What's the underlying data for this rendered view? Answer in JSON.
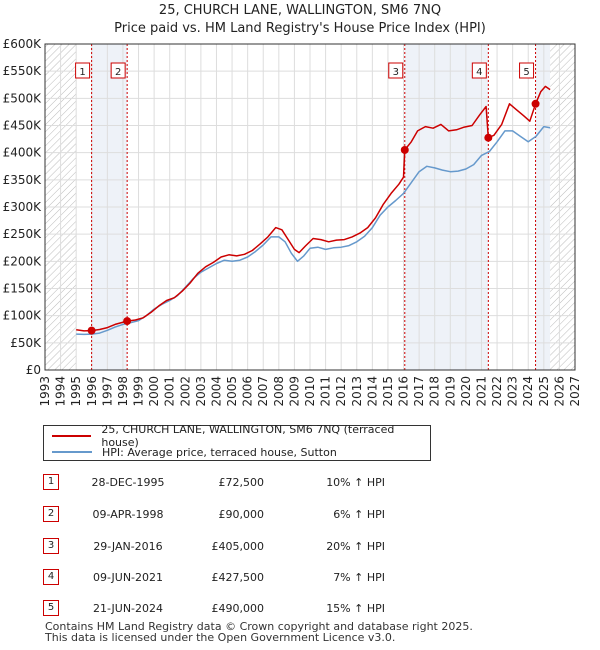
{
  "title_line1": "25, CHURCH LANE, WALLINGTON, SM6 7NQ",
  "title_line2": "Price paid vs. HM Land Registry's House Price Index (HPI)",
  "colors": {
    "price": "#cc0000",
    "hpi": "#6699cc",
    "grid": "#dddddd",
    "hatch": "#bbbbbb",
    "shade": "#eef2f8"
  },
  "chart_data": {
    "type": "line",
    "title": "25, CHURCH LANE, WALLINGTON, SM6 7NQ — Price paid vs. HM Land Registry's House Price Index (HPI)",
    "xlim": [
      1993,
      2027
    ],
    "ylim": [
      0,
      600000
    ],
    "x_ticks": [
      1993,
      1994,
      1995,
      1996,
      1997,
      1998,
      1999,
      2000,
      2001,
      2002,
      2003,
      2004,
      2005,
      2006,
      2007,
      2008,
      2009,
      2010,
      2011,
      2012,
      2013,
      2014,
      2015,
      2016,
      2017,
      2018,
      2019,
      2020,
      2021,
      2022,
      2023,
      2024,
      2025,
      2026,
      2027
    ],
    "y_ticks": [
      {
        "value": 0,
        "label": "£0"
      },
      {
        "value": 50000,
        "label": "£50K"
      },
      {
        "value": 100000,
        "label": "£100K"
      },
      {
        "value": 150000,
        "label": "£150K"
      },
      {
        "value": 200000,
        "label": "£200K"
      },
      {
        "value": 250000,
        "label": "£250K"
      },
      {
        "value": 300000,
        "label": "£300K"
      },
      {
        "value": 350000,
        "label": "£350K"
      },
      {
        "value": 400000,
        "label": "£400K"
      },
      {
        "value": 450000,
        "label": "£450K"
      },
      {
        "value": 500000,
        "label": "£500K"
      },
      {
        "value": 550000,
        "label": "£550K"
      },
      {
        "value": 600000,
        "label": "£600K"
      }
    ],
    "data_start": 1995.0,
    "data_end": 2025.4,
    "series": [
      {
        "name": "25, CHURCH LANE, WALLINGTON, SM6 7NQ (terraced house)",
        "color": "#cc0000",
        "points": [
          [
            1995.0,
            74000
          ],
          [
            1995.5,
            72000
          ],
          [
            1995.99,
            72500
          ],
          [
            1996.5,
            74500
          ],
          [
            1997.0,
            78000
          ],
          [
            1997.5,
            84000
          ],
          [
            1998.27,
            90000
          ],
          [
            1998.8,
            92000
          ],
          [
            1999.3,
            96000
          ],
          [
            1999.8,
            106000
          ],
          [
            2000.3,
            118000
          ],
          [
            2000.8,
            128000
          ],
          [
            2001.3,
            133000
          ],
          [
            2001.8,
            145000
          ],
          [
            2002.3,
            160000
          ],
          [
            2002.8,
            178000
          ],
          [
            2003.3,
            190000
          ],
          [
            2003.8,
            198000
          ],
          [
            2004.3,
            208000
          ],
          [
            2004.8,
            212000
          ],
          [
            2005.3,
            210000
          ],
          [
            2005.8,
            213000
          ],
          [
            2006.3,
            220000
          ],
          [
            2006.8,
            232000
          ],
          [
            2007.3,
            245000
          ],
          [
            2007.8,
            262000
          ],
          [
            2008.2,
            258000
          ],
          [
            2008.6,
            240000
          ],
          [
            2009.0,
            222000
          ],
          [
            2009.3,
            216000
          ],
          [
            2009.7,
            228000
          ],
          [
            2010.2,
            242000
          ],
          [
            2010.7,
            240000
          ],
          [
            2011.2,
            236000
          ],
          [
            2011.7,
            239000
          ],
          [
            2012.2,
            240000
          ],
          [
            2012.7,
            245000
          ],
          [
            2013.2,
            252000
          ],
          [
            2013.7,
            262000
          ],
          [
            2014.2,
            280000
          ],
          [
            2014.7,
            305000
          ],
          [
            2015.2,
            325000
          ],
          [
            2015.7,
            342000
          ],
          [
            2016.0,
            355000
          ],
          [
            2016.08,
            405000
          ],
          [
            2016.5,
            420000
          ],
          [
            2016.9,
            440000
          ],
          [
            2017.4,
            448000
          ],
          [
            2017.9,
            445000
          ],
          [
            2018.4,
            452000
          ],
          [
            2018.9,
            440000
          ],
          [
            2019.4,
            442000
          ],
          [
            2019.9,
            447000
          ],
          [
            2020.4,
            450000
          ],
          [
            2020.9,
            470000
          ],
          [
            2021.3,
            485000
          ],
          [
            2021.44,
            427500
          ],
          [
            2021.8,
            432000
          ],
          [
            2022.3,
            452000
          ],
          [
            2022.8,
            490000
          ],
          [
            2023.2,
            480000
          ],
          [
            2023.7,
            468000
          ],
          [
            2024.1,
            458000
          ],
          [
            2024.47,
            490000
          ],
          [
            2024.8,
            512000
          ],
          [
            2025.1,
            522000
          ],
          [
            2025.4,
            516000
          ]
        ]
      },
      {
        "name": "HPI: Average price, terraced house, Sutton",
        "color": "#6699cc",
        "points": [
          [
            1995.0,
            66000
          ],
          [
            1995.5,
            65500
          ],
          [
            1996.0,
            66000
          ],
          [
            1996.5,
            68000
          ],
          [
            1997.0,
            73000
          ],
          [
            1997.5,
            79000
          ],
          [
            1998.0,
            84000
          ],
          [
            1998.5,
            87000
          ],
          [
            1999.0,
            91000
          ],
          [
            1999.5,
            100000
          ],
          [
            2000.0,
            112000
          ],
          [
            2000.5,
            121000
          ],
          [
            2001.0,
            128000
          ],
          [
            2001.5,
            137000
          ],
          [
            2002.0,
            152000
          ],
          [
            2002.5,
            168000
          ],
          [
            2003.0,
            180000
          ],
          [
            2003.5,
            188000
          ],
          [
            2004.0,
            196000
          ],
          [
            2004.5,
            202000
          ],
          [
            2005.0,
            200000
          ],
          [
            2005.5,
            202000
          ],
          [
            2006.0,
            208000
          ],
          [
            2006.5,
            218000
          ],
          [
            2007.0,
            230000
          ],
          [
            2007.5,
            245000
          ],
          [
            2008.0,
            245000
          ],
          [
            2008.4,
            236000
          ],
          [
            2008.8,
            215000
          ],
          [
            2009.2,
            200000
          ],
          [
            2009.6,
            210000
          ],
          [
            2010.0,
            224000
          ],
          [
            2010.5,
            226000
          ],
          [
            2011.0,
            222000
          ],
          [
            2011.5,
            225000
          ],
          [
            2012.0,
            226000
          ],
          [
            2012.5,
            229000
          ],
          [
            2013.0,
            236000
          ],
          [
            2013.5,
            246000
          ],
          [
            2014.0,
            262000
          ],
          [
            2014.5,
            285000
          ],
          [
            2015.0,
            300000
          ],
          [
            2015.5,
            312000
          ],
          [
            2016.0,
            325000
          ],
          [
            2016.5,
            345000
          ],
          [
            2017.0,
            365000
          ],
          [
            2017.5,
            375000
          ],
          [
            2018.0,
            372000
          ],
          [
            2018.5,
            368000
          ],
          [
            2019.0,
            365000
          ],
          [
            2019.5,
            366000
          ],
          [
            2020.0,
            370000
          ],
          [
            2020.5,
            378000
          ],
          [
            2021.0,
            395000
          ],
          [
            2021.5,
            402000
          ],
          [
            2022.0,
            420000
          ],
          [
            2022.5,
            440000
          ],
          [
            2023.0,
            440000
          ],
          [
            2023.5,
            430000
          ],
          [
            2024.0,
            420000
          ],
          [
            2024.5,
            430000
          ],
          [
            2025.0,
            448000
          ],
          [
            2025.4,
            446000
          ]
        ]
      }
    ],
    "sales": [
      {
        "n": "1",
        "x": 1995.99,
        "price": 72500
      },
      {
        "n": "2",
        "x": 1998.27,
        "price": 90000
      },
      {
        "n": "3",
        "x": 2016.08,
        "price": 405000
      },
      {
        "n": "4",
        "x": 2021.44,
        "price": 427500
      },
      {
        "n": "5",
        "x": 2024.47,
        "price": 490000
      }
    ],
    "legend_position": "below"
  },
  "legend": {
    "price_label": "25, CHURCH LANE, WALLINGTON, SM6 7NQ (terraced house)",
    "hpi_label": "HPI: Average price, terraced house, Sutton"
  },
  "sales_table": [
    {
      "n": "1",
      "date": "28-DEC-1995",
      "price": "£72,500",
      "hpi": "10% ↑ HPI"
    },
    {
      "n": "2",
      "date": "09-APR-1998",
      "price": "£90,000",
      "hpi": "6% ↑ HPI"
    },
    {
      "n": "3",
      "date": "29-JAN-2016",
      "price": "£405,000",
      "hpi": "20% ↑ HPI"
    },
    {
      "n": "4",
      "date": "09-JUN-2021",
      "price": "£427,500",
      "hpi": "7% ↑ HPI"
    },
    {
      "n": "5",
      "date": "21-JUN-2024",
      "price": "£490,000",
      "hpi": "15% ↑ HPI"
    }
  ],
  "footer": {
    "line1": "Contains HM Land Registry data © Crown copyright and database right 2025.",
    "line2": "This data is licensed under the Open Government Licence v3.0."
  }
}
